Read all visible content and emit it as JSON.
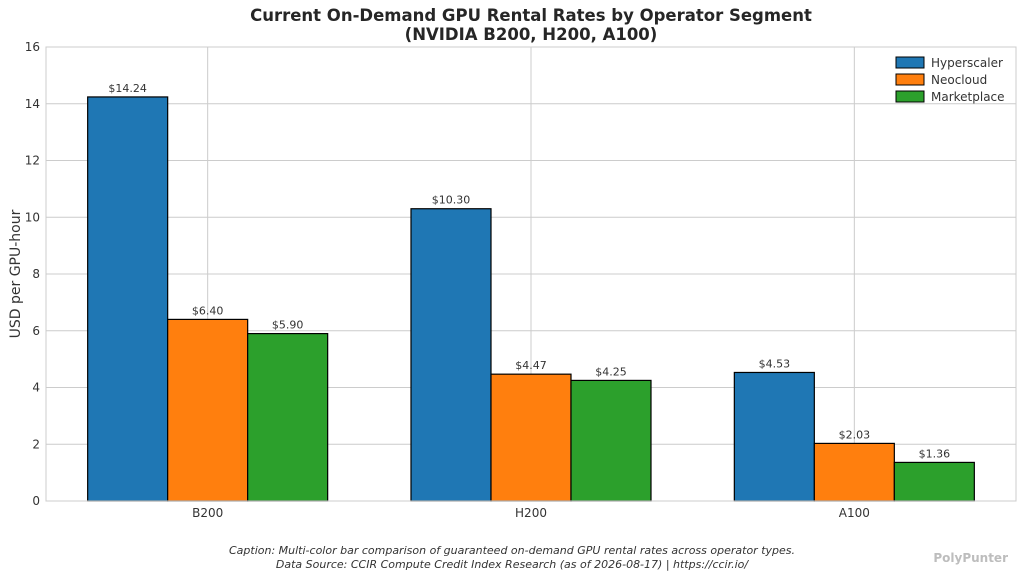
{
  "caption_line1": "Caption: Multi-color bar comparison of guaranteed on-demand GPU rental rates across operator types.",
  "caption_line2": "Data Source: CCIR Compute Credit Index Research (as of 2026-08-17) | https://ccir.io/",
  "watermark": "PolyPunter",
  "chart_data": {
    "type": "bar",
    "title": "Current On-Demand GPU Rental Rates by Operator Segment",
    "subtitle": "(NVIDIA B200, H200, A100)",
    "xlabel": "",
    "ylabel": "USD per GPU-hour",
    "ylim": [
      0,
      16
    ],
    "yticks": [
      0,
      2,
      4,
      6,
      8,
      10,
      12,
      14,
      16
    ],
    "categories": [
      "B200",
      "H200",
      "A100"
    ],
    "series": [
      {
        "name": "Hyperscaler",
        "color": "#1f77b4",
        "values": [
          14.24,
          10.3,
          4.53
        ],
        "labels": [
          "$14.24",
          "$10.30",
          "$4.53"
        ]
      },
      {
        "name": "Neocloud",
        "color": "#ff7f0e",
        "values": [
          6.4,
          4.47,
          2.03
        ],
        "labels": [
          "$6.40",
          "$4.47",
          "$2.03"
        ]
      },
      {
        "name": "Marketplace",
        "color": "#2ca02c",
        "values": [
          5.9,
          4.25,
          1.36
        ],
        "labels": [
          "$5.90",
          "$4.25",
          "$1.36"
        ]
      }
    ],
    "grid": true,
    "legend_position": "top-right"
  }
}
